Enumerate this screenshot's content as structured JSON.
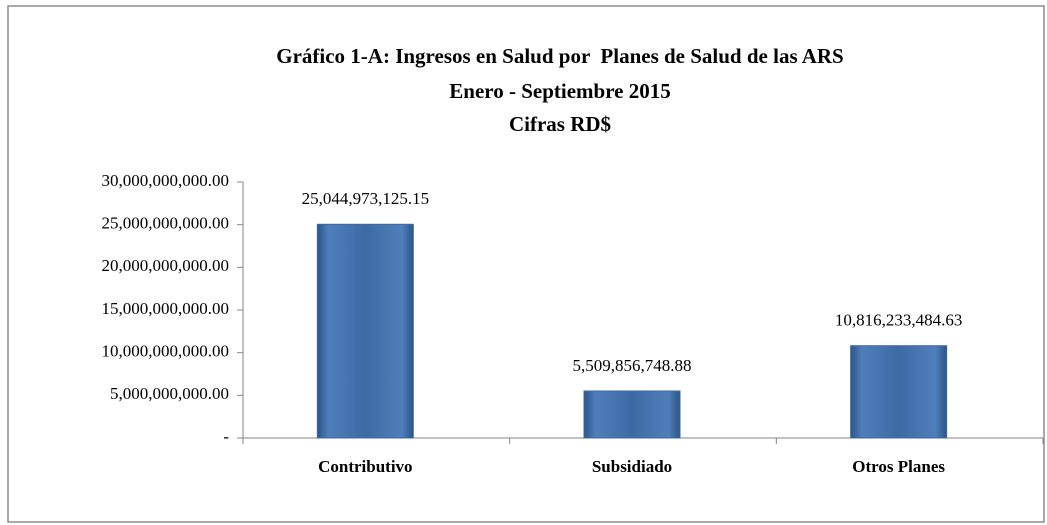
{
  "chart_data": {
    "type": "bar",
    "title": [
      "Gráfico 1-A: Ingresos en Salud por  Planes de Salud de las ARS",
      "Enero - Septiembre 2015",
      "Cifras RD$"
    ],
    "categories": [
      "Contributivo",
      "Subsidiado",
      "Otros Planes"
    ],
    "values": [
      25044973125.15,
      5509856748.88,
      10816233484.63
    ],
    "value_labels": [
      "25,044,973,125.15",
      "5,509,856,748.88",
      "10,816,233,484.63"
    ],
    "color": "#3d6aa4",
    "ylim": [
      0,
      30000000000
    ],
    "yticks": [
      {
        "value": 0,
        "label": "-"
      },
      {
        "value": 5000000000,
        "label": "5,000,000,000.00"
      },
      {
        "value": 10000000000,
        "label": "10,000,000,000.00"
      },
      {
        "value": 15000000000,
        "label": "15,000,000,000.00"
      },
      {
        "value": 20000000000,
        "label": "20,000,000,000.00"
      },
      {
        "value": 25000000000,
        "label": "25,000,000,000.00"
      },
      {
        "value": 30000000000,
        "label": "30,000,000,000.00"
      }
    ],
    "grid": false
  }
}
